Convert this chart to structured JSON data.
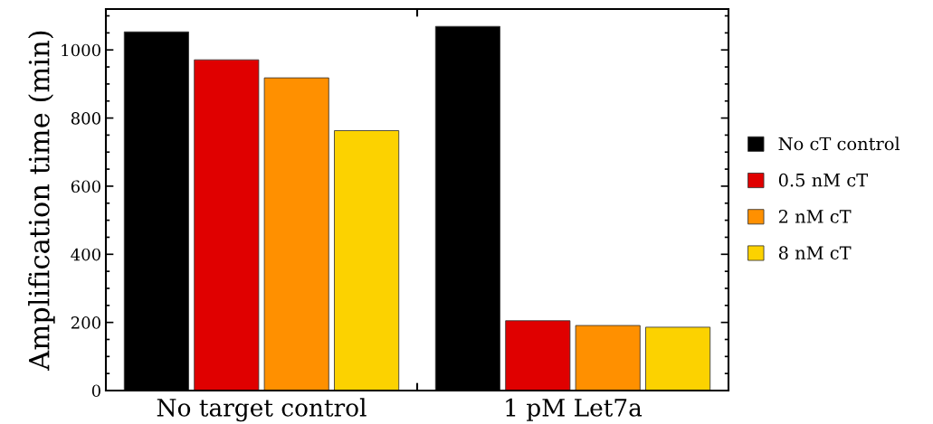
{
  "chart_data": {
    "type": "bar",
    "ylabel": "Amplification time (min)",
    "categories": [
      "No target control",
      "1 pM Let7a"
    ],
    "series": [
      {
        "name": "No cT control",
        "color": "#000000",
        "values": [
          1053,
          1069
        ]
      },
      {
        "name": "0.5 nM cT",
        "color": "#e00000",
        "values": [
          971,
          205
        ]
      },
      {
        "name": "2 nM cT",
        "color": "#ff9000",
        "values": [
          918,
          191
        ]
      },
      {
        "name": "8 nM cT",
        "color": "#fcd200",
        "values": [
          763,
          186
        ]
      }
    ],
    "ylim": [
      0,
      1120
    ],
    "yticks": [
      0,
      200,
      400,
      600,
      800,
      1000
    ],
    "grid": false,
    "legend": "right"
  }
}
